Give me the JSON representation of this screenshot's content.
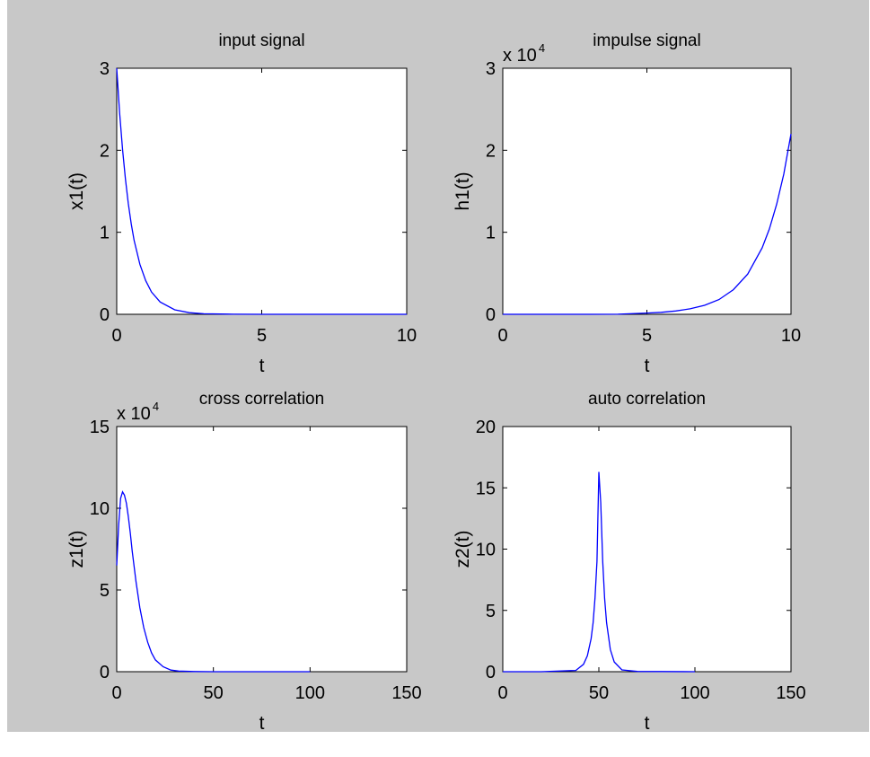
{
  "figure": {
    "background": "#c8c8c8",
    "line_color": "#0000ff"
  },
  "chart_data": [
    {
      "type": "line",
      "title": "input signal",
      "xlabel": "t",
      "ylabel": "x1(t)",
      "xlim": [
        0,
        10
      ],
      "ylim": [
        0,
        3
      ],
      "xticks": [
        0,
        5,
        10
      ],
      "yticks": [
        0,
        1,
        2,
        3
      ],
      "multiplier": "",
      "series": [
        {
          "x": [
            0,
            0.1,
            0.2,
            0.3,
            0.4,
            0.5,
            0.6,
            0.8,
            1.0,
            1.2,
            1.5,
            2.0,
            2.5,
            3.0,
            4.0,
            5.0,
            6.0,
            7.0,
            8.0,
            9.0,
            10.0
          ],
          "y": [
            3.0,
            2.46,
            2.01,
            1.65,
            1.35,
            1.1,
            0.9,
            0.61,
            0.41,
            0.27,
            0.15,
            0.055,
            0.02,
            0.007,
            0.001,
            0,
            0,
            0,
            0,
            0,
            0
          ]
        }
      ]
    },
    {
      "type": "line",
      "title": "impulse signal",
      "xlabel": "t",
      "ylabel": "h1(t)",
      "xlim": [
        0,
        10
      ],
      "ylim": [
        0,
        3
      ],
      "xticks": [
        0,
        5,
        10
      ],
      "yticks": [
        0,
        1,
        2,
        3
      ],
      "multiplier": {
        "base": "x 10",
        "exponent": "4"
      },
      "series": [
        {
          "x": [
            0,
            1,
            2,
            3,
            4,
            5,
            5.5,
            6.0,
            6.5,
            7.0,
            7.5,
            8.0,
            8.5,
            9.0,
            9.25,
            9.5,
            9.75,
            10.0
          ],
          "y": [
            0,
            0,
            0,
            0,
            0.001,
            0.015,
            0.024,
            0.04,
            0.067,
            0.11,
            0.18,
            0.3,
            0.49,
            0.81,
            1.04,
            1.34,
            1.71,
            2.2
          ]
        }
      ]
    },
    {
      "type": "line",
      "title": "cross correlation",
      "xlabel": "t",
      "ylabel": "z1(t)",
      "xlim": [
        0,
        150
      ],
      "ylim": [
        0,
        15
      ],
      "xticks": [
        0,
        50,
        100,
        150
      ],
      "yticks": [
        0,
        5,
        10,
        15
      ],
      "multiplier": {
        "base": "x 10",
        "exponent": "4"
      },
      "series": [
        {
          "x": [
            0,
            1,
            2,
            3,
            4,
            5,
            6,
            7,
            8,
            10,
            12,
            14,
            16,
            18,
            20,
            24,
            28,
            32,
            40,
            50,
            60,
            80,
            100
          ],
          "y": [
            6.5,
            9.0,
            10.6,
            11.0,
            10.8,
            10.3,
            9.5,
            8.5,
            7.4,
            5.5,
            3.9,
            2.7,
            1.8,
            1.15,
            0.72,
            0.3,
            0.1,
            0.04,
            0.01,
            0,
            0,
            0,
            0
          ]
        }
      ]
    },
    {
      "type": "line",
      "title": "auto correlation",
      "xlabel": "t",
      "ylabel": "z2(t)",
      "xlim": [
        0,
        150
      ],
      "ylim": [
        0,
        20
      ],
      "xticks": [
        0,
        50,
        100,
        150
      ],
      "yticks": [
        0,
        5,
        10,
        15,
        20
      ],
      "multiplier": "",
      "series": [
        {
          "x": [
            0,
            20,
            38,
            42,
            44,
            46,
            47,
            48,
            49,
            50,
            51,
            52,
            53,
            54,
            56,
            58,
            62,
            70,
            100
          ],
          "y": [
            0,
            0,
            0.1,
            0.6,
            1.3,
            2.7,
            4.0,
            6.0,
            9.0,
            16.3,
            13.8,
            9.0,
            6.0,
            4.0,
            1.8,
            0.8,
            0.15,
            0.02,
            0
          ]
        }
      ]
    }
  ]
}
